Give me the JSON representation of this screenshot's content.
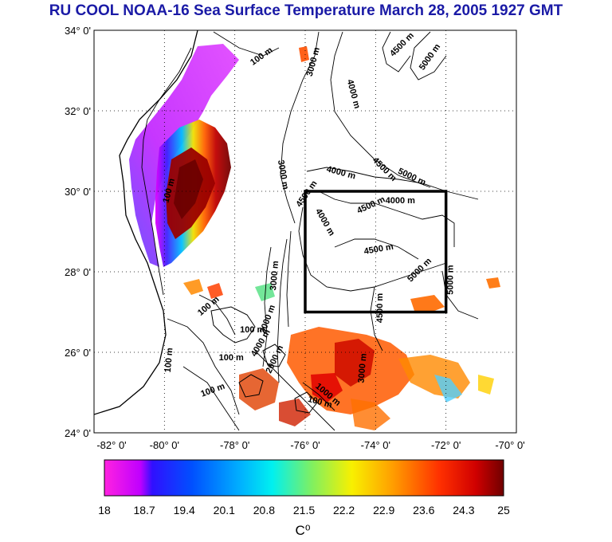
{
  "title": "RU COOL  NOAA-16 Sea Surface Temperature March 28, 2005 1927 GMT",
  "lat_labels": [
    "34° 0'",
    "32° 0'",
    "30° 0'",
    "28° 0'",
    "26° 0'",
    "24° 0'"
  ],
  "lon_labels": [
    "-82° 0'",
    "-80° 0'",
    "-78° 0'",
    "-76° 0'",
    "-74° 0'",
    "-72° 0'",
    "-70° 0'"
  ],
  "contour_labels": [
    {
      "text": "100 m",
      "lon": -77.2,
      "lat": 33.3,
      "rot": -35
    },
    {
      "text": "100 m",
      "lon": -79.8,
      "lat": 30.0,
      "rot": -75
    },
    {
      "text": "100 m",
      "lon": -78.7,
      "lat": 27.1,
      "rot": -40
    },
    {
      "text": "100 m",
      "lon": -77.5,
      "lat": 26.5,
      "rot": 0
    },
    {
      "text": "100 m",
      "lon": -78.1,
      "lat": 25.8,
      "rot": 0
    },
    {
      "text": "100 m",
      "lon": -79.8,
      "lat": 25.8,
      "rot": -85
    },
    {
      "text": "100 m",
      "lon": -78.6,
      "lat": 25.0,
      "rot": -20
    },
    {
      "text": "100 m",
      "lon": -75.6,
      "lat": 24.7,
      "rot": 15
    },
    {
      "text": "3000 m",
      "lon": -75.7,
      "lat": 33.2,
      "rot": -75
    },
    {
      "text": "4500 m",
      "lon": -73.2,
      "lat": 33.6,
      "rot": -45
    },
    {
      "text": "5000 m",
      "lon": -72.4,
      "lat": 33.3,
      "rot": -55
    },
    {
      "text": "4000 m",
      "lon": -74.7,
      "lat": 32.4,
      "rot": 75
    },
    {
      "text": "3000 m",
      "lon": -76.7,
      "lat": 30.4,
      "rot": 80
    },
    {
      "text": "4000 m",
      "lon": -75.0,
      "lat": 30.4,
      "rot": 15
    },
    {
      "text": "4500 m",
      "lon": -73.8,
      "lat": 30.5,
      "rot": 45
    },
    {
      "text": "5000 m",
      "lon": -73.0,
      "lat": 30.3,
      "rot": 25
    },
    {
      "text": "4000 m",
      "lon": -73.3,
      "lat": 29.7,
      "rot": 0
    },
    {
      "text": "4500 m",
      "lon": -74.1,
      "lat": 29.6,
      "rot": -25
    },
    {
      "text": "4500 m",
      "lon": -75.9,
      "lat": 29.9,
      "rot": -55
    },
    {
      "text": "4000 m",
      "lon": -75.5,
      "lat": 29.2,
      "rot": 60
    },
    {
      "text": "4500 m",
      "lon": -73.9,
      "lat": 28.5,
      "rot": -10
    },
    {
      "text": "5000 m",
      "lon": -72.7,
      "lat": 28.0,
      "rot": -45
    },
    {
      "text": "5000 m",
      "lon": -71.8,
      "lat": 27.8,
      "rot": -90
    },
    {
      "text": "3000 m",
      "lon": -76.8,
      "lat": 27.9,
      "rot": -85
    },
    {
      "text": "4500 m",
      "lon": -73.8,
      "lat": 27.1,
      "rot": -90
    },
    {
      "text": "3000 m",
      "lon": -77.0,
      "lat": 26.8,
      "rot": -70
    },
    {
      "text": "2000 m",
      "lon": -76.8,
      "lat": 25.8,
      "rot": -65
    },
    {
      "text": "4000 m",
      "lon": -77.2,
      "lat": 26.2,
      "rot": -60
    },
    {
      "text": "3000 m",
      "lon": -74.3,
      "lat": 25.6,
      "rot": -85
    },
    {
      "text": "1000 m",
      "lon": -75.4,
      "lat": 24.9,
      "rot": 40
    }
  ],
  "colorbar": {
    "min": 18,
    "max": 25,
    "tick_labels": [
      "18",
      "18.7",
      "19.4",
      "20.1",
      "20.8",
      "21.5",
      "22.2",
      "22.9",
      "23.6",
      "24.3",
      "25"
    ],
    "unit": "C⁰"
  },
  "colors": {
    "title": "#1a1aa6",
    "frame_box": "#000000"
  }
}
